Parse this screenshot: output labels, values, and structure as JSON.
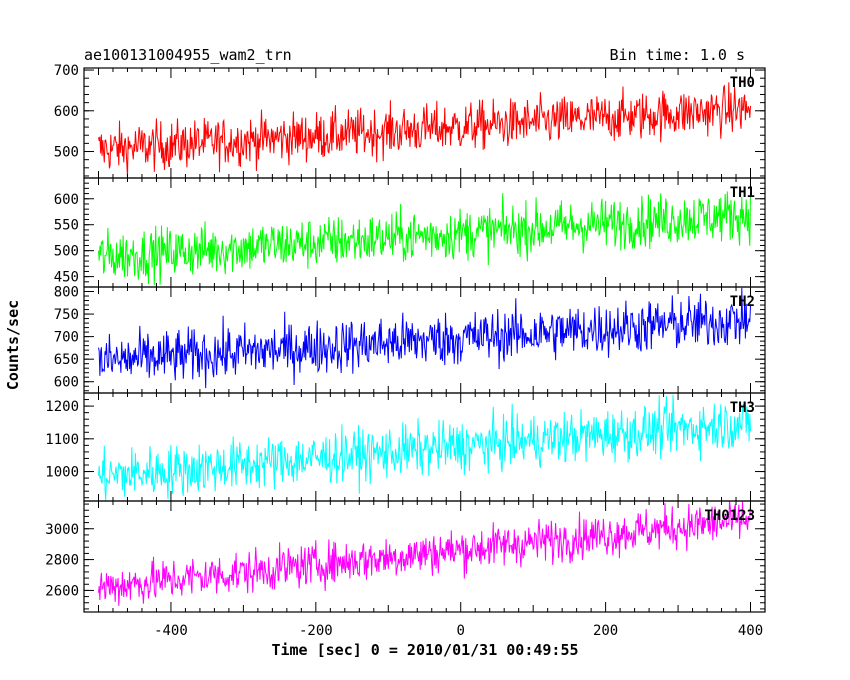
{
  "chart_data": {
    "type": "line",
    "title": "ae100131004955_wam2_trn",
    "subtitle": "Bin time: 1.0 s",
    "xlabel": "Time [sec] 0 = 2010/01/31 00:49:55",
    "ylabel": "Counts/sec",
    "xlim": [
      -520,
      420
    ],
    "x_ticks": [
      -400,
      -200,
      0,
      200,
      400
    ],
    "x_start": -500,
    "x_end": 400,
    "panels": [
      {
        "name": "TH0",
        "color": "#ff0000",
        "ylim": [
          435,
          705
        ],
        "y_ticks": [
          500,
          600,
          700
        ],
        "trend_start": 505,
        "trend_end": 605,
        "noise": 30
      },
      {
        "name": "TH1",
        "color": "#00ff00",
        "ylim": [
          430,
          640
        ],
        "y_ticks": [
          450,
          500,
          550,
          600
        ],
        "trend_start": 488,
        "trend_end": 570,
        "noise": 25
      },
      {
        "name": "TH2",
        "color": "#0000ff",
        "ylim": [
          575,
          810
        ],
        "y_ticks": [
          600,
          650,
          700,
          750,
          800
        ],
        "trend_start": 645,
        "trend_end": 738,
        "noise": 30
      },
      {
        "name": "TH3",
        "color": "#00ffff",
        "ylim": [
          910,
          1240
        ],
        "y_ticks": [
          1000,
          1100,
          1200
        ],
        "trend_start": 985,
        "trend_end": 1150,
        "noise": 40
      },
      {
        "name": "TH0123",
        "color": "#ff00ff",
        "ylim": [
          2460,
          3180
        ],
        "y_ticks": [
          2600,
          2800,
          3000
        ],
        "trend_start": 2620,
        "trend_end": 3060,
        "noise": 70
      }
    ]
  }
}
